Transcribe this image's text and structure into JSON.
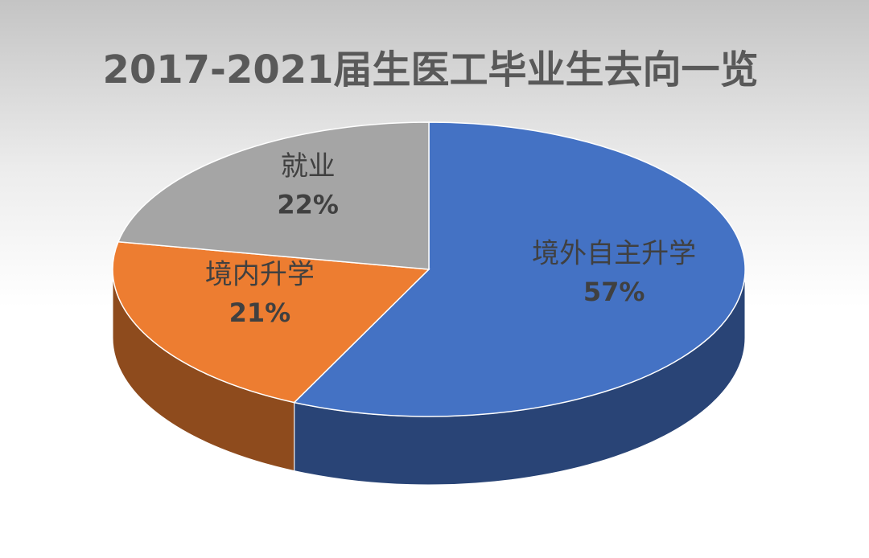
{
  "chart_data": {
    "type": "pie",
    "title": "2017-2021届生医工毕业生去向一览",
    "categories": [
      "境外自主升学",
      "境内升学",
      "就业"
    ],
    "values": [
      57,
      21,
      22
    ],
    "value_labels": [
      "57%",
      "21%",
      "22%"
    ],
    "colors": [
      "#4472c4",
      "#ed7d31",
      "#a5a5a5"
    ]
  }
}
